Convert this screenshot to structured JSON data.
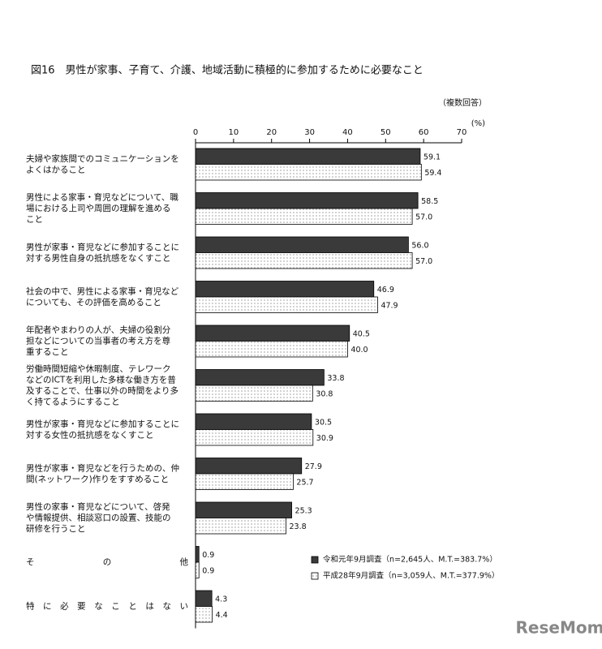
{
  "chart_data": {
    "type": "bar",
    "orientation": "horizontal",
    "title": "図16　男性が家事、子育て、介護、地域活動に積極的に参加するために必要なこと",
    "note": "（複数回答）",
    "unit": "(%)",
    "categories": [
      [
        "夫婦や家族間でのコミュニケーションを",
        "よくはかること"
      ],
      [
        "男性による家事・育児などについて、職",
        "場における上司や周囲の理解を進める",
        "こと"
      ],
      [
        "男性が家事・育児などに参加することに",
        "対する男性自身の抵抗感をなくすこと"
      ],
      [
        "社会の中で、男性による家事・育児など",
        "についても、その評価を高めること"
      ],
      [
        "年配者やまわりの人が、夫婦の役割分",
        "担などについての当事者の考え方を尊",
        "重すること"
      ],
      [
        "労働時間短縮や休暇制度、テレワーク",
        "などのICTを利用した多様な働き方を普",
        "及することで、仕事以外の時間をより多",
        "く持てるようにすること"
      ],
      [
        "男性が家事・育児などに参加することに",
        "対する女性の抵抗感をなくすこと"
      ],
      [
        "男性が家事・育児などを行うための、仲",
        "間(ネットワーク)作りをすすめること"
      ],
      [
        "男性の家事・育児などについて、啓発",
        "や情報提供、相談窓口の設置、技能の",
        "研修を行うこと"
      ],
      [
        "その他"
      ],
      [
        "特に必要なことはない"
      ]
    ],
    "series": [
      {
        "name": "令和元年9月調査（n=2,645人、M.T.=383.7%）",
        "color": "#3a3a3a",
        "values": [
          59.1,
          58.5,
          56.0,
          46.9,
          40.5,
          33.8,
          30.5,
          27.9,
          25.3,
          0.9,
          4.3
        ],
        "value_labels": [
          "59.1",
          "58.5",
          "56.0",
          "46.9",
          "40.5",
          "33.8",
          "30.5",
          "27.9",
          "25.3",
          "0.9",
          "4.3"
        ]
      },
      {
        "name": "平成28年9月調査（n=3,059人、M.T.=377.9%）",
        "color": "#ffffff",
        "values": [
          59.4,
          57.0,
          57.0,
          47.9,
          40.0,
          30.8,
          30.9,
          25.7,
          23.8,
          0.9,
          4.4
        ],
        "value_labels": [
          "59.4",
          "57.0",
          "57.0",
          "47.9",
          "40.0",
          "30.8",
          "30.9",
          "25.7",
          "23.8",
          "0.9",
          "4.4"
        ]
      }
    ],
    "xlim": [
      0,
      70
    ],
    "xticks": [
      0,
      10,
      20,
      30,
      40,
      50,
      60,
      70
    ],
    "watermark": "ReseMom"
  }
}
